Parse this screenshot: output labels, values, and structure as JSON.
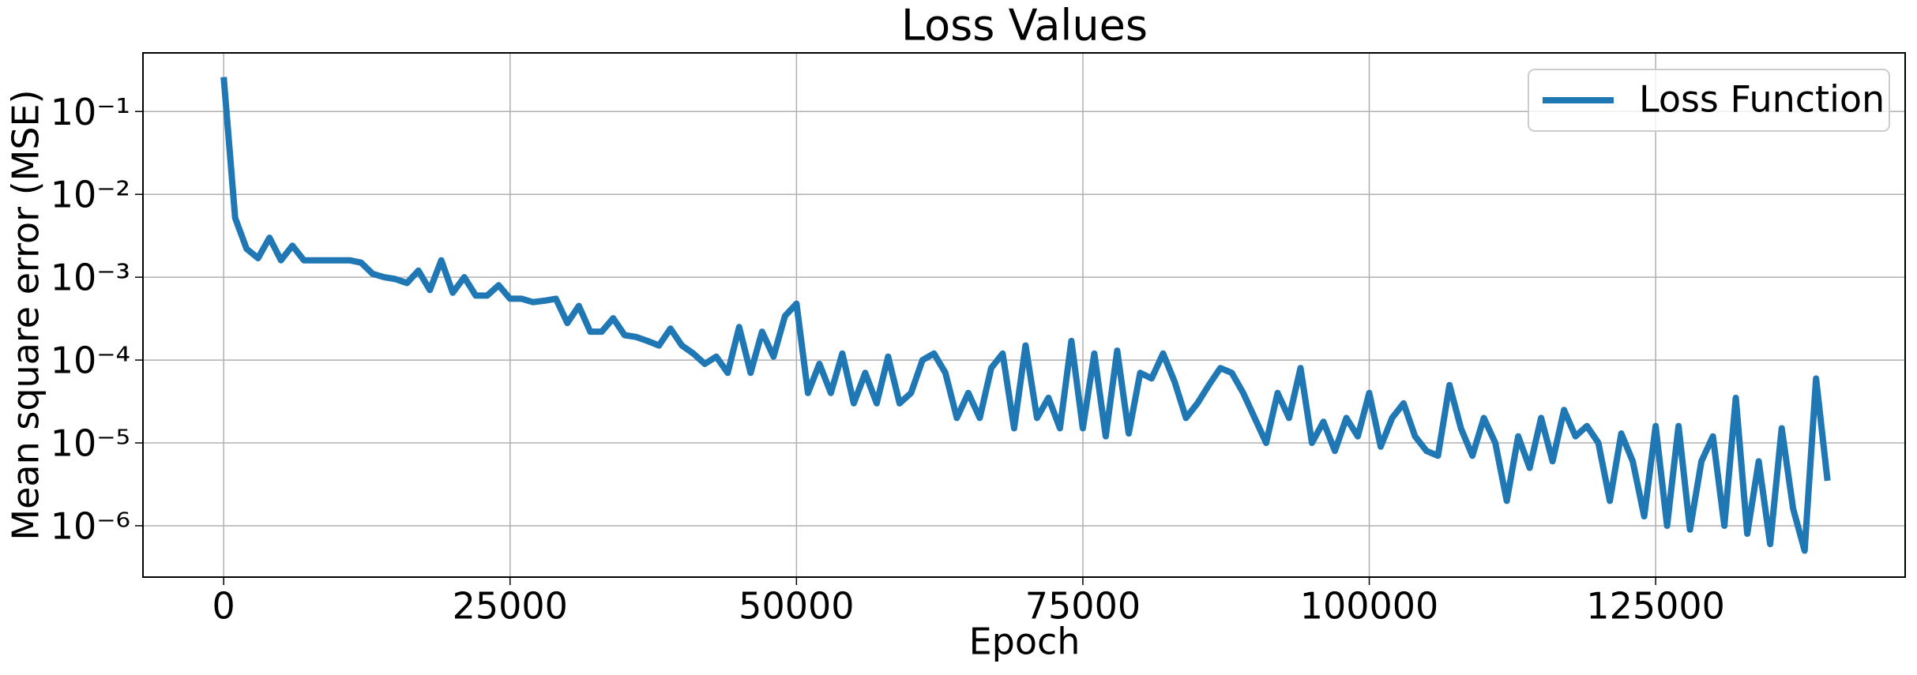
{
  "chart_data": {
    "type": "line",
    "title": "Loss Values",
    "x_label": "Epoch",
    "y_label": "Mean square error (MSE)",
    "yscale": "log",
    "grid": true,
    "legend": "upper right",
    "xlim": [
      -7045,
      146780
    ],
    "ylim": [
      2.4e-07,
      0.51
    ],
    "xticks": [
      0,
      25000,
      50000,
      75000,
      100000,
      125000
    ],
    "yticks": [
      {
        "value": 1e-06,
        "label": "10⁻⁶"
      },
      {
        "value": 1e-05,
        "label": "10⁻⁵"
      },
      {
        "value": 0.0001,
        "label": "10⁻⁴"
      },
      {
        "value": 0.001,
        "label": "10⁻³"
      },
      {
        "value": 0.01,
        "label": "10⁻²"
      },
      {
        "value": 0.1,
        "label": "10⁻¹"
      }
    ],
    "x": [
      0,
      1000,
      2000,
      3000,
      4000,
      5000,
      6000,
      7000,
      8000,
      9000,
      10000,
      11000,
      12000,
      13000,
      14000,
      15000,
      16000,
      17000,
      18000,
      19000,
      20000,
      21000,
      22000,
      23000,
      24000,
      25000,
      26000,
      27000,
      28000,
      29000,
      30000,
      31000,
      32000,
      33000,
      34000,
      35000,
      36000,
      37000,
      38000,
      39000,
      40000,
      41000,
      42000,
      43000,
      44000,
      45000,
      46000,
      47000,
      48000,
      49000,
      50000,
      51000,
      52000,
      53000,
      54000,
      55000,
      56000,
      57000,
      58000,
      59000,
      60000,
      61000,
      62000,
      63000,
      64000,
      65000,
      66000,
      67000,
      68000,
      69000,
      70000,
      71000,
      72000,
      73000,
      74000,
      75000,
      76000,
      77000,
      78000,
      79000,
      80000,
      81000,
      82000,
      83000,
      84000,
      85000,
      86000,
      87000,
      88000,
      89000,
      90000,
      91000,
      92000,
      93000,
      94000,
      95000,
      96000,
      97000,
      98000,
      99000,
      100000,
      101000,
      102000,
      103000,
      104000,
      105000,
      106000,
      107000,
      108000,
      109000,
      110000,
      111000,
      112000,
      113000,
      114000,
      115000,
      116000,
      117000,
      118000,
      119000,
      120000,
      121000,
      122000,
      123000,
      124000,
      125000,
      126000,
      127000,
      128000,
      129000,
      130000,
      131000,
      132000,
      133000,
      134000,
      135000,
      136000,
      137000,
      138000,
      139000,
      140000
    ],
    "series": [
      {
        "name": "Loss Function",
        "color": "#1f77b4",
        "values": [
          0.26,
          0.0052,
          0.0022,
          0.0017,
          0.003,
          0.0016,
          0.0024,
          0.0016,
          0.0016,
          0.0016,
          0.0016,
          0.0016,
          0.0015,
          0.0011,
          0.001,
          0.00095,
          0.00085,
          0.0012,
          0.0007,
          0.0016,
          0.00065,
          0.001,
          0.0006,
          0.0006,
          0.0008,
          0.00055,
          0.00055,
          0.0005,
          0.00052,
          0.00055,
          0.00028,
          0.00045,
          0.00022,
          0.00022,
          0.00032,
          0.0002,
          0.00019,
          0.00017,
          0.00015,
          0.00024,
          0.00015,
          0.00012,
          9e-05,
          0.00011,
          7e-05,
          0.00025,
          7e-05,
          0.00022,
          0.00011,
          0.00034,
          0.00048,
          4e-05,
          9e-05,
          4e-05,
          0.00012,
          3e-05,
          7e-05,
          3e-05,
          0.00011,
          3e-05,
          4e-05,
          0.0001,
          0.00012,
          7e-05,
          2e-05,
          4e-05,
          2e-05,
          8e-05,
          0.00012,
          1.5e-05,
          0.00015,
          2e-05,
          3.5e-05,
          1.5e-05,
          0.00017,
          1.5e-05,
          0.00012,
          1.2e-05,
          0.00013,
          1.3e-05,
          7e-05,
          6e-05,
          0.00012,
          5.5e-05,
          2e-05,
          3e-05,
          5e-05,
          8e-05,
          7e-05,
          4e-05,
          2e-05,
          1e-05,
          4e-05,
          2e-05,
          8e-05,
          1e-05,
          1.8e-05,
          8e-06,
          2e-05,
          1.2e-05,
          4e-05,
          9e-06,
          2e-05,
          3e-05,
          1.2e-05,
          8e-06,
          7e-06,
          5e-05,
          1.5e-05,
          7e-06,
          2e-05,
          1e-05,
          2e-06,
          1.2e-05,
          5e-06,
          2e-05,
          6e-06,
          2.5e-05,
          1.2e-05,
          1.6e-05,
          1e-05,
          2e-06,
          1.3e-05,
          6e-06,
          1.3e-06,
          1.6e-05,
          1e-06,
          1.6e-05,
          9e-07,
          6e-06,
          1.2e-05,
          1e-06,
          3.5e-05,
          8e-07,
          6e-06,
          6e-07,
          1.5e-05,
          1.6e-06,
          5e-07,
          6e-05,
          3.5e-06
        ]
      }
    ]
  }
}
